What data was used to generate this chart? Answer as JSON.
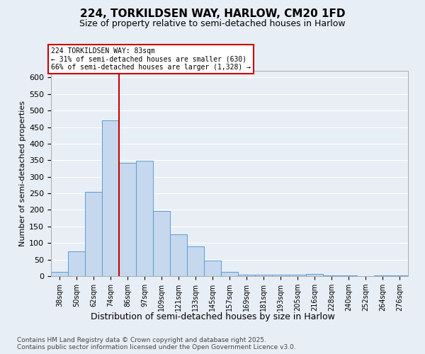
{
  "title1": "224, TORKILDSEN WAY, HARLOW, CM20 1FD",
  "title2": "Size of property relative to semi-detached houses in Harlow",
  "xlabel": "Distribution of semi-detached houses by size in Harlow",
  "ylabel": "Number of semi-detached properties",
  "categories": [
    "38sqm",
    "50sqm",
    "62sqm",
    "74sqm",
    "86sqm",
    "97sqm",
    "109sqm",
    "121sqm",
    "133sqm",
    "145sqm",
    "157sqm",
    "169sqm",
    "181sqm",
    "193sqm",
    "205sqm",
    "216sqm",
    "228sqm",
    "240sqm",
    "252sqm",
    "264sqm",
    "276sqm"
  ],
  "values": [
    13,
    75,
    255,
    470,
    343,
    348,
    197,
    127,
    90,
    46,
    13,
    5,
    4,
    5,
    5,
    7,
    3,
    3,
    1,
    3,
    2
  ],
  "bar_color": "#c5d8ed",
  "bar_edge_color": "#5b9bd5",
  "property_label": "224 TORKILDSEN WAY: 83sqm",
  "annotation_line1": "← 31% of semi-detached houses are smaller (630)",
  "annotation_line2": "66% of semi-detached houses are larger (1,328) →",
  "vline_color": "#cc0000",
  "vline_x_index": 3.5,
  "annotation_box_color": "#cc0000",
  "ylim": [
    0,
    620
  ],
  "yticks": [
    0,
    50,
    100,
    150,
    200,
    250,
    300,
    350,
    400,
    450,
    500,
    550,
    600
  ],
  "background_color": "#e8eef5",
  "grid_color": "#ffffff",
  "footer1": "Contains HM Land Registry data © Crown copyright and database right 2025.",
  "footer2": "Contains public sector information licensed under the Open Government Licence v3.0."
}
